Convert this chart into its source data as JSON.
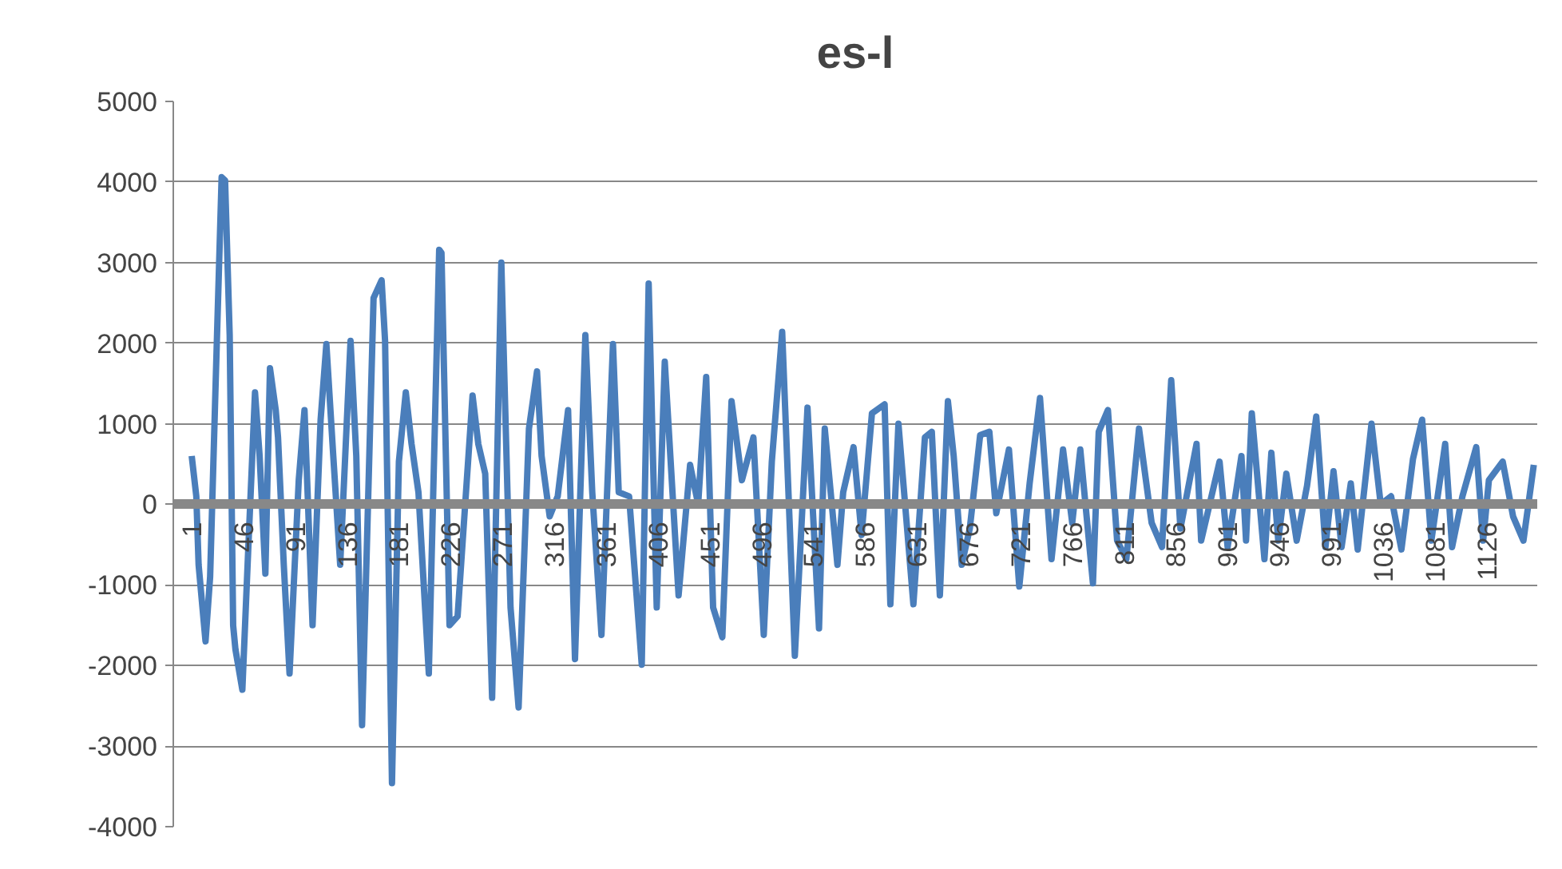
{
  "chart_data": {
    "type": "line",
    "title": "es-l",
    "x": [
      1,
      5,
      7,
      13,
      17,
      23,
      27,
      30,
      34,
      37,
      39,
      45,
      50,
      56,
      60,
      65,
      69,
      74,
      76,
      81,
      86,
      94,
      99,
      106,
      113,
      118,
      124,
      130,
      139,
      144,
      149,
      159,
      166,
      169,
      175,
      181,
      187,
      192,
      198,
      207,
      216,
      218,
      225,
      232,
      245,
      250,
      256,
      262,
      270,
      278,
      285,
      294,
      301,
      305,
      312,
      319,
      328,
      334,
      343,
      349,
      357,
      367,
      372,
      381,
      392,
      398,
      405,
      412,
      424,
      434,
      441,
      448,
      454,
      462,
      470,
      479,
      489,
      498,
      505,
      514,
      525,
      536,
      546,
      551,
      562,
      567,
      576,
      583,
      592,
      603,
      608,
      615,
      628,
      638,
      644,
      651,
      658,
      663,
      670,
      677,
      686,
      694,
      700,
      711,
      720,
      729,
      738,
      748,
      758,
      766,
      773,
      784,
      789,
      797,
      805,
      813,
      824,
      835,
      844,
      852,
      860,
      874,
      878,
      894,
      901,
      913,
      917,
      922,
      933,
      939,
      945,
      952,
      961,
      970,
      978,
      986,
      993,
      1000,
      1008,
      1014,
      1026,
      1034,
      1043,
      1052,
      1062,
      1070,
      1078,
      1090,
      1096,
      1105,
      1117,
      1123,
      1128,
      1140,
      1149,
      1158,
      1167
    ],
    "series": [
      {
        "color": "#4a7ebb",
        "values": [
          600,
          100,
          -750,
          -1700,
          -900,
          2100,
          4060,
          4020,
          2100,
          -1500,
          -1800,
          -2300,
          -600,
          1390,
          600,
          -860,
          1690,
          1170,
          830,
          -750,
          -2100,
          300,
          1170,
          -1500,
          1050,
          1990,
          600,
          -750,
          2030,
          600,
          -2740,
          2560,
          2780,
          2030,
          -3460,
          530,
          1390,
          750,
          150,
          -2100,
          3160,
          3120,
          -1500,
          -1390,
          1350,
          750,
          380,
          -2400,
          3000,
          -1280,
          -2520,
          940,
          1650,
          600,
          -150,
          100,
          1170,
          -1920,
          2100,
          150,
          -1620,
          1990,
          150,
          100,
          -1990,
          2740,
          -1280,
          1770,
          -1130,
          490,
          0,
          1580,
          -1280,
          -1650,
          1280,
          300,
          830,
          -1620,
          530,
          2140,
          -1880,
          1200,
          -1540,
          940,
          -750,
          150,
          710,
          -380,
          1130,
          1240,
          -1240,
          1000,
          -1240,
          830,
          900,
          -1130,
          1280,
          600,
          -750,
          -300,
          860,
          900,
          -110,
          680,
          -1020,
          260,
          1320,
          -680,
          680,
          -230,
          680,
          -980,
          900,
          1170,
          -450,
          -680,
          940,
          -230,
          -530,
          1540,
          -300,
          750,
          -450,
          530,
          -530,
          600,
          -450,
          1130,
          -680,
          640,
          -450,
          380,
          -450,
          230,
          1090,
          -530,
          410,
          -530,
          260,
          -560,
          1000,
          0,
          100,
          -560,
          560,
          1050,
          -450,
          750,
          -530,
          100,
          710,
          -450,
          300,
          530,
          -150,
          -450,
          490
        ]
      }
    ],
    "xlim": [
      -15,
      1170
    ],
    "xticks": [
      1,
      46,
      91,
      136,
      181,
      226,
      271,
      316,
      361,
      406,
      451,
      496,
      541,
      586,
      631,
      676,
      721,
      766,
      811,
      856,
      901,
      946,
      991,
      1036,
      1081,
      1126
    ],
    "ylim": [
      -4000,
      5000
    ],
    "yticks": [
      -4000,
      -3000,
      -2000,
      -1000,
      0,
      1000,
      2000,
      3000,
      4000,
      5000
    ],
    "grid": "y",
    "line_style": "solid"
  }
}
